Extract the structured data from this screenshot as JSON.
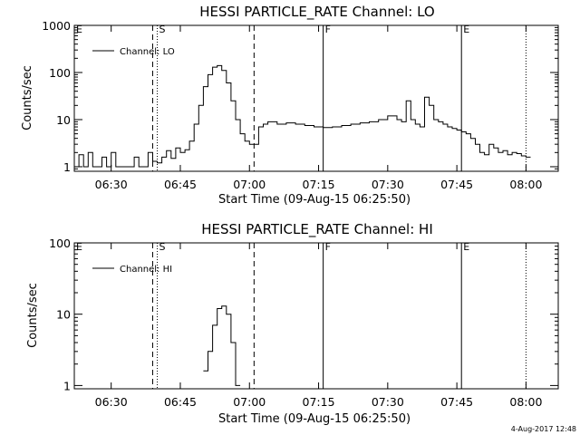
{
  "footer": {
    "timestamp": "4-Aug-2017 12:48"
  },
  "chart_data": [
    {
      "type": "line",
      "title": "HESSI PARTICLE_RATE Channel: LO",
      "xlabel": "Start Time (09-Aug-15 06:25:50)",
      "ylabel": "Counts/sec",
      "yscale": "log",
      "xlim": [
        "06:22",
        "08:07"
      ],
      "ylim": [
        0.8,
        1000
      ],
      "x_ticks": [
        "06:30",
        "06:45",
        "07:00",
        "07:15",
        "07:30",
        "07:45",
        "08:00"
      ],
      "y_ticks": [
        "1",
        "10",
        "100",
        "1000"
      ],
      "legend": {
        "label": "Channel: LO",
        "placement": "top-left"
      },
      "vlines": [
        {
          "x": "06:39",
          "style": "dashed",
          "label": ""
        },
        {
          "x": "06:40",
          "style": "dotted",
          "label": "S"
        },
        {
          "x": "07:01",
          "style": "dashed",
          "label": ""
        },
        {
          "x": "07:16",
          "style": "solid",
          "label": "F"
        },
        {
          "x": "07:46",
          "style": "solid",
          "label": "E"
        },
        {
          "x": "08:00",
          "style": "dotted",
          "label": ""
        }
      ],
      "corner_label": "E",
      "series": [
        {
          "name": "Channel: LO",
          "x": [
            "06:22",
            "06:23",
            "06:24",
            "06:25",
            "06:26",
            "06:27",
            "06:28",
            "06:29",
            "06:30",
            "06:31",
            "06:32",
            "06:33",
            "06:34",
            "06:35",
            "06:36",
            "06:37",
            "06:38",
            "06:39",
            "06:40",
            "06:41",
            "06:42",
            "06:43",
            "06:44",
            "06:45",
            "06:46",
            "06:47",
            "06:48",
            "06:49",
            "06:50",
            "06:51",
            "06:52",
            "06:53",
            "06:54",
            "06:55",
            "06:56",
            "06:57",
            "06:58",
            "06:59",
            "07:00",
            "07:01",
            "07:02",
            "07:03",
            "07:04",
            "07:06",
            "07:08",
            "07:10",
            "07:12",
            "07:14",
            "07:16",
            "07:18",
            "07:20",
            "07:22",
            "07:24",
            "07:26",
            "07:28",
            "07:30",
            "07:32",
            "07:33",
            "07:34",
            "07:35",
            "07:36",
            "07:37",
            "07:38",
            "07:39",
            "07:40",
            "07:41",
            "07:42",
            "07:43",
            "07:44",
            "07:45",
            "07:46",
            "07:47",
            "07:48",
            "07:49",
            "07:50",
            "07:51",
            "07:52",
            "07:53",
            "07:54",
            "07:55",
            "07:56",
            "07:57",
            "07:58",
            "07:59",
            "08:00"
          ],
          "y": [
            1,
            1.8,
            1,
            2,
            1,
            1,
            1.6,
            1,
            2,
            1,
            1,
            1,
            1,
            1.6,
            1,
            1,
            2,
            1.3,
            1.2,
            1.6,
            2.2,
            1.5,
            2.5,
            2,
            2.3,
            3.5,
            8,
            20,
            50,
            90,
            130,
            140,
            110,
            60,
            25,
            10,
            5,
            3.5,
            3,
            3,
            7,
            8,
            9,
            8,
            8.5,
            8,
            7.5,
            7,
            6.8,
            7,
            7.5,
            8,
            8.5,
            9,
            10,
            12,
            10,
            9,
            25,
            10,
            8,
            7,
            30,
            20,
            10,
            9,
            8,
            7,
            6.5,
            6,
            5.5,
            5,
            4,
            3,
            2,
            1.8,
            3,
            2.5,
            2,
            2.2,
            1.8,
            2,
            1.9,
            1.7,
            1.6
          ]
        }
      ]
    },
    {
      "type": "line",
      "title": "HESSI PARTICLE_RATE Channel: HI",
      "xlabel": "Start Time (09-Aug-15 06:25:50)",
      "ylabel": "Counts/sec",
      "yscale": "log",
      "xlim": [
        "06:22",
        "08:07"
      ],
      "ylim": [
        0.9,
        100
      ],
      "x_ticks": [
        "06:30",
        "06:45",
        "07:00",
        "07:15",
        "07:30",
        "07:45",
        "08:00"
      ],
      "y_ticks": [
        "1",
        "10",
        "100"
      ],
      "legend": {
        "label": "Channel: HI",
        "placement": "top-left"
      },
      "vlines": [
        {
          "x": "06:39",
          "style": "dashed",
          "label": ""
        },
        {
          "x": "06:40",
          "style": "dotted",
          "label": "S"
        },
        {
          "x": "07:01",
          "style": "dashed",
          "label": ""
        },
        {
          "x": "07:16",
          "style": "solid",
          "label": "F"
        },
        {
          "x": "07:46",
          "style": "solid",
          "label": "E"
        },
        {
          "x": "08:00",
          "style": "dotted",
          "label": ""
        }
      ],
      "corner_label": "E",
      "series": [
        {
          "name": "Channel: HI",
          "x": [
            "06:50",
            "06:51",
            "06:52",
            "06:53",
            "06:54",
            "06:55",
            "06:56",
            "06:57"
          ],
          "y": [
            1.6,
            3,
            7,
            12,
            13,
            10,
            4,
            1
          ]
        }
      ]
    }
  ]
}
